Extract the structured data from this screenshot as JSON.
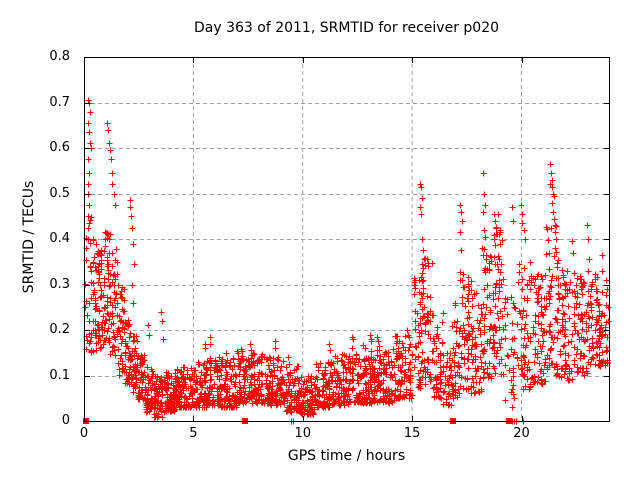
{
  "chart_data": {
    "type": "scatter",
    "title": "Day 363 of 2011, SRMTID for receiver p020",
    "xlabel": "GPS time / hours",
    "ylabel": "SRMTID / TECUs",
    "xlim": [
      0,
      24
    ],
    "ylim": [
      0,
      0.8
    ],
    "grid": true,
    "legend": "none",
    "marker": "plus",
    "colors": {
      "marker": "#ff0000",
      "grid": "#a0a0a0",
      "axis": "#000000",
      "background": "#ffffff",
      "text": "#000000"
    },
    "xticks": [
      {
        "v": 0,
        "label": "0"
      },
      {
        "v": 5,
        "label": "5"
      },
      {
        "v": 10,
        "label": "10"
      },
      {
        "v": 15,
        "label": "15"
      },
      {
        "v": 20,
        "label": "20"
      }
    ],
    "yticks": [
      {
        "v": 0,
        "label": "0"
      },
      {
        "v": 0.1,
        "label": "0.1"
      },
      {
        "v": 0.2,
        "label": "0.2"
      },
      {
        "v": 0.3,
        "label": "0.3"
      },
      {
        "v": 0.4,
        "label": "0.4"
      },
      {
        "v": 0.5,
        "label": "0.5"
      },
      {
        "v": 0.6,
        "label": "0.6"
      },
      {
        "v": 0.7,
        "label": "0.7"
      },
      {
        "v": 0.8,
        "label": "0.8"
      }
    ],
    "seed": 20111229,
    "bands": [
      [
        0.05,
        0.3,
        0.15,
        0.45,
        22,
        1.3
      ],
      [
        0.3,
        0.6,
        0.15,
        0.4,
        40,
        1.2
      ],
      [
        0.6,
        0.9,
        0.16,
        0.38,
        42,
        1.2
      ],
      [
        0.9,
        1.2,
        0.17,
        0.42,
        48,
        1.2
      ],
      [
        1.2,
        1.55,
        0.14,
        0.38,
        42,
        1.3
      ],
      [
        1.55,
        1.85,
        0.1,
        0.3,
        40,
        1.4
      ],
      [
        1.85,
        2.15,
        0.08,
        0.24,
        40,
        1.4
      ],
      [
        2.15,
        2.45,
        0.06,
        0.19,
        40,
        1.5
      ],
      [
        2.45,
        2.8,
        0.045,
        0.15,
        46,
        1.5
      ],
      [
        2.8,
        3.2,
        0.02,
        0.12,
        52,
        1.4
      ],
      [
        3.2,
        3.6,
        0.008,
        0.1,
        55,
        1.3
      ],
      [
        3.6,
        4.2,
        0.02,
        0.11,
        75,
        1.5
      ],
      [
        4.2,
        5.0,
        0.03,
        0.12,
        95,
        1.6
      ],
      [
        5.0,
        5.6,
        0.03,
        0.13,
        70,
        1.6
      ],
      [
        5.6,
        6.2,
        0.035,
        0.14,
        72,
        1.6
      ],
      [
        6.2,
        7.0,
        0.03,
        0.14,
        95,
        1.6
      ],
      [
        7.0,
        7.6,
        0.04,
        0.16,
        70,
        1.5
      ],
      [
        7.6,
        8.4,
        0.04,
        0.15,
        95,
        1.6
      ],
      [
        8.4,
        9.2,
        0.035,
        0.14,
        95,
        1.6
      ],
      [
        9.2,
        9.8,
        0.02,
        0.12,
        62,
        1.5
      ],
      [
        9.8,
        10.6,
        0.015,
        0.1,
        90,
        1.4
      ],
      [
        10.6,
        11.4,
        0.03,
        0.13,
        92,
        1.6
      ],
      [
        11.4,
        12.2,
        0.035,
        0.15,
        92,
        1.6
      ],
      [
        12.2,
        13.2,
        0.04,
        0.17,
        115,
        1.6
      ],
      [
        13.2,
        14.2,
        0.04,
        0.16,
        112,
        1.6
      ],
      [
        14.2,
        15.0,
        0.05,
        0.19,
        92,
        1.5
      ],
      [
        15.0,
        15.4,
        0.07,
        0.32,
        42,
        1.3
      ],
      [
        15.4,
        15.9,
        0.08,
        0.36,
        55,
        1.3
      ],
      [
        15.9,
        16.4,
        0.05,
        0.24,
        50,
        1.4
      ],
      [
        16.4,
        16.8,
        0.03,
        0.15,
        36,
        1.5
      ],
      [
        16.8,
        17.2,
        0.05,
        0.27,
        45,
        1.4
      ],
      [
        17.2,
        17.7,
        0.07,
        0.33,
        55,
        1.3
      ],
      [
        17.7,
        18.2,
        0.06,
        0.29,
        55,
        1.4
      ],
      [
        18.2,
        18.7,
        0.09,
        0.38,
        56,
        1.3
      ],
      [
        18.7,
        19.2,
        0.1,
        0.43,
        56,
        1.2
      ],
      [
        19.2,
        19.8,
        0.03,
        0.28,
        30,
        1.4
      ],
      [
        19.8,
        20.4,
        0.07,
        0.36,
        56,
        1.3
      ],
      [
        20.4,
        21.1,
        0.08,
        0.33,
        70,
        1.4
      ],
      [
        21.1,
        21.7,
        0.1,
        0.43,
        66,
        1.2
      ],
      [
        21.7,
        22.4,
        0.09,
        0.34,
        70,
        1.3
      ],
      [
        22.4,
        23.0,
        0.1,
        0.32,
        62,
        1.3
      ],
      [
        23.0,
        23.5,
        0.12,
        0.33,
        52,
        1.2
      ],
      [
        23.5,
        23.97,
        0.12,
        0.29,
        52,
        1.2
      ]
    ],
    "columns": [
      [
        0.22,
        [
          0.705,
          0.7,
          0.68,
          0.655
        ]
      ],
      [
        0.27,
        [
          0.635,
          0.61,
          0.6
        ]
      ],
      [
        0.24,
        [
          0.575,
          0.545
        ]
      ],
      [
        0.2,
        [
          0.52,
          0.5,
          0.475,
          0.45,
          0.425
        ]
      ],
      [
        1.1,
        [
          0.655,
          0.64
        ]
      ],
      [
        1.18,
        [
          0.61,
          0.595,
          0.575
        ]
      ],
      [
        1.3,
        [
          0.545,
          0.52
        ]
      ],
      [
        1.42,
        [
          0.5,
          0.475
        ]
      ],
      [
        2.12,
        [
          0.485,
          0.47,
          0.45
        ]
      ],
      [
        2.25,
        [
          0.425,
          0.39,
          0.345,
          0.3,
          0.26
        ]
      ],
      [
        2.95,
        [
          0.21,
          0.19
        ]
      ],
      [
        3.55,
        [
          0.24,
          0.22,
          0.18
        ]
      ],
      [
        5.55,
        [
          0.17,
          0.16
        ]
      ],
      [
        5.78,
        [
          0.185,
          0.17
        ]
      ],
      [
        6.55,
        [
          0.15,
          0.135
        ]
      ],
      [
        7.65,
        [
          0.17,
          0.155,
          0.145
        ]
      ],
      [
        8.75,
        [
          0.175,
          0.16
        ]
      ],
      [
        9.35,
        [
          0.14,
          0.125
        ]
      ],
      [
        11.25,
        [
          0.17,
          0.155,
          0.13
        ]
      ],
      [
        12.3,
        [
          0.185,
          0.18,
          0.13
        ]
      ],
      [
        13.1,
        [
          0.19,
          0.18,
          0.175
        ]
      ],
      [
        13.45,
        [
          0.185,
          0.175,
          0.165
        ]
      ],
      [
        14.35,
        [
          0.175,
          0.16,
          0.145
        ]
      ],
      [
        14.8,
        [
          0.2,
          0.19,
          0.185
        ]
      ],
      [
        15.4,
        [
          0.52,
          0.515,
          0.49,
          0.47,
          0.455
        ]
      ],
      [
        15.5,
        [
          0.4,
          0.375,
          0.355,
          0.345,
          0.31
        ]
      ],
      [
        17.25,
        [
          0.475,
          0.46,
          0.44,
          0.415,
          0.375,
          0.31
        ]
      ],
      [
        18.28,
        [
          0.545,
          0.5,
          0.475,
          0.46,
          0.42,
          0.405
        ]
      ],
      [
        18.4,
        [
          0.365,
          0.335,
          0.3
        ]
      ],
      [
        18.8,
        [
          0.455,
          0.44,
          0.41,
          0.4
        ]
      ],
      [
        18.95,
        [
          0.455,
          0.41,
          0.355,
          0.335,
          0.31,
          0.295
        ]
      ],
      [
        19.6,
        [
          0.47,
          0.44,
          0.25,
          0.18,
          0.1,
          0.05
        ]
      ],
      [
        20.0,
        [
          0.475,
          0.455,
          0.435
        ]
      ],
      [
        20.15,
        [
          0.42,
          0.4
        ]
      ],
      [
        21.35,
        [
          0.565,
          0.545,
          0.53,
          0.52
        ]
      ],
      [
        21.45,
        [
          0.515,
          0.5,
          0.495,
          0.48,
          0.46,
          0.445
        ]
      ],
      [
        21.55,
        [
          0.43,
          0.415,
          0.4,
          0.38
        ]
      ],
      [
        22.35,
        [
          0.395,
          0.37
        ]
      ],
      [
        23.05,
        [
          0.43,
          0.4,
          0.355
        ]
      ],
      [
        23.7,
        [
          0.365,
          0.33
        ]
      ],
      [
        23.9,
        [
          0.31,
          0.29
        ]
      ]
    ],
    "zero_squares": [
      0.1,
      7.38,
      16.85,
      19.42
    ],
    "zero_plus_marks": [
      9.45,
      9.55,
      19.55,
      19.65,
      19.75,
      20.07
    ]
  }
}
